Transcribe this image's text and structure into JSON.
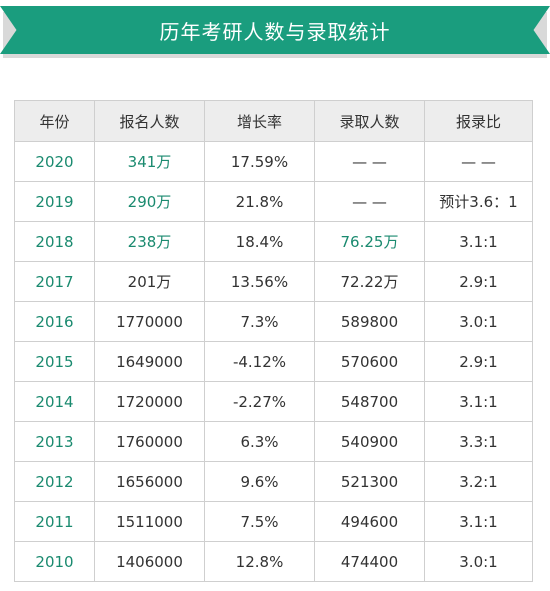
{
  "title": "历年考研人数与录取统计",
  "headers": [
    "年份",
    "报名人数",
    "增长率",
    "录取人数",
    "报录比"
  ],
  "rows": [
    {
      "year": "2020",
      "applicants": "341万",
      "growth": "17.59%",
      "admitted": "— —",
      "ratio": "— —",
      "applicants_green": true,
      "admitted_green": false
    },
    {
      "year": "2019",
      "applicants": "290万",
      "growth": "21.8%",
      "admitted": "— —",
      "ratio": "预计3.6：1",
      "applicants_green": true,
      "admitted_green": false
    },
    {
      "year": "2018",
      "applicants": "238万",
      "growth": "18.4%",
      "admitted": "76.25万",
      "ratio": "3.1:1",
      "applicants_green": true,
      "admitted_green": true
    },
    {
      "year": "2017",
      "applicants": "201万",
      "growth": "13.56%",
      "admitted": "72.22万",
      "ratio": "2.9:1",
      "applicants_green": false,
      "admitted_green": false
    },
    {
      "year": "2016",
      "applicants": "1770000",
      "growth": "7.3%",
      "admitted": "589800",
      "ratio": "3.0:1",
      "applicants_green": false,
      "admitted_green": false
    },
    {
      "year": "2015",
      "applicants": "1649000",
      "growth": "-4.12%",
      "admitted": "570600",
      "ratio": "2.9:1",
      "applicants_green": false,
      "admitted_green": false
    },
    {
      "year": "2014",
      "applicants": "1720000",
      "growth": "-2.27%",
      "admitted": "548700",
      "ratio": "3.1:1",
      "applicants_green": false,
      "admitted_green": false
    },
    {
      "year": "2013",
      "applicants": "1760000",
      "growth": "6.3%",
      "admitted": "540900",
      "ratio": "3.3:1",
      "applicants_green": false,
      "admitted_green": false
    },
    {
      "year": "2012",
      "applicants": "1656000",
      "growth": "9.6%",
      "admitted": "521300",
      "ratio": "3.2:1",
      "applicants_green": false,
      "admitted_green": false
    },
    {
      "year": "2011",
      "applicants": "1511000",
      "growth": "7.5%",
      "admitted": "494600",
      "ratio": "3.1:1",
      "applicants_green": false,
      "admitted_green": false
    },
    {
      "year": "2010",
      "applicants": "1406000",
      "growth": "12.8%",
      "admitted": "474400",
      "ratio": "3.0:1",
      "applicants_green": false,
      "admitted_green": false
    }
  ],
  "colors": {
    "accent": "#1a9d7e",
    "text_green": "#1a8a6f",
    "header_bg": "#ededed"
  }
}
